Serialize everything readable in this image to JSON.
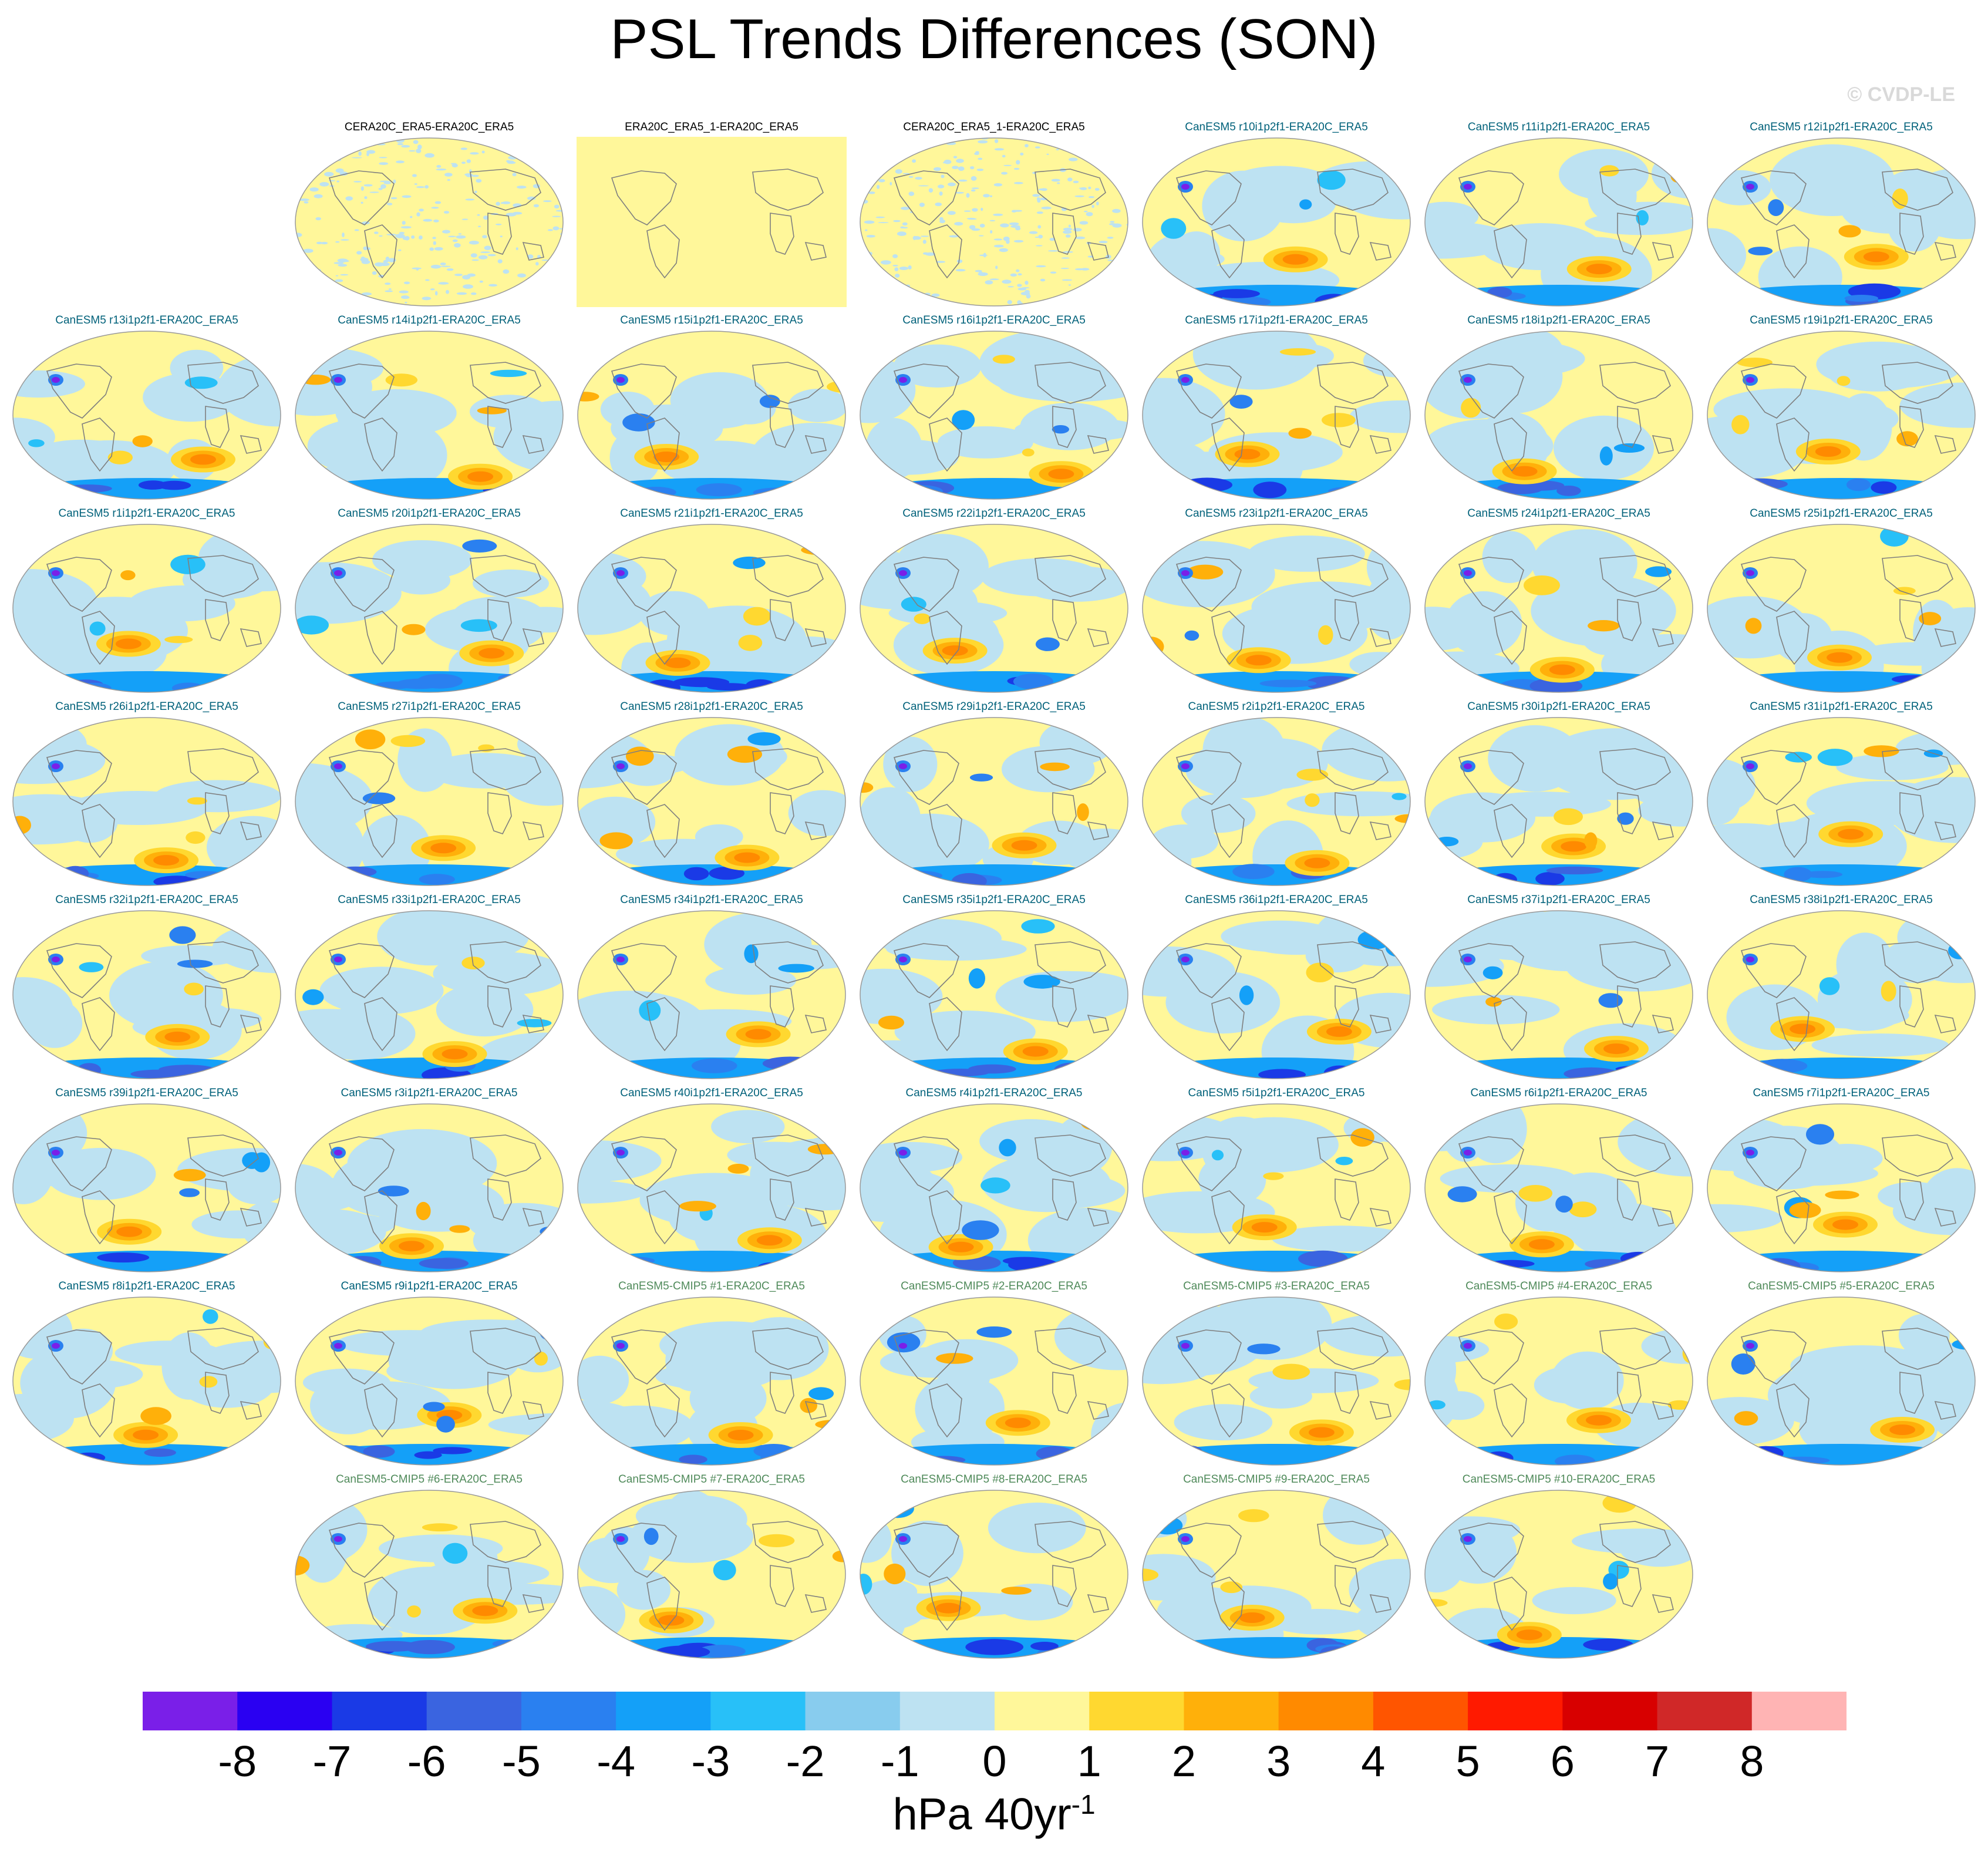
{
  "title": "PSL Trends Differences (SON)",
  "copyright": "© CVDP-LE",
  "colors": {
    "obs_title": "#000000",
    "model_title": "#00617a",
    "cmip_title": "#4f8a5a",
    "ocean_blank": "#fff79a",
    "coastline": "#7f7f7f"
  },
  "panels": [
    {
      "label": "CERA20C_ERA5-ERA20C_ERA5",
      "kind": "obs",
      "style": "speckle",
      "seed": 1
    },
    {
      "label": "ERA20C_ERA5_1-ERA20C_ERA5",
      "kind": "obs",
      "style": "blank",
      "seed": 2
    },
    {
      "label": "CERA20C_ERA5_1-ERA20C_ERA5",
      "kind": "obs",
      "style": "speckle",
      "seed": 3
    },
    {
      "label": "CanESM5 r10i1p2f1-ERA20C_ERA5",
      "kind": "model",
      "style": "field",
      "seed": 10
    },
    {
      "label": "CanESM5 r11i1p2f1-ERA20C_ERA5",
      "kind": "model",
      "style": "field",
      "seed": 11
    },
    {
      "label": "CanESM5 r12i1p2f1-ERA20C_ERA5",
      "kind": "model",
      "style": "field",
      "seed": 12
    },
    {
      "label": "CanESM5 r13i1p2f1-ERA20C_ERA5",
      "kind": "model",
      "style": "field",
      "seed": 13
    },
    {
      "label": "CanESM5 r14i1p2f1-ERA20C_ERA5",
      "kind": "model",
      "style": "field",
      "seed": 14
    },
    {
      "label": "CanESM5 r15i1p2f1-ERA20C_ERA5",
      "kind": "model",
      "style": "field",
      "seed": 15
    },
    {
      "label": "CanESM5 r16i1p2f1-ERA20C_ERA5",
      "kind": "model",
      "style": "field",
      "seed": 16
    },
    {
      "label": "CanESM5 r17i1p2f1-ERA20C_ERA5",
      "kind": "model",
      "style": "field",
      "seed": 17
    },
    {
      "label": "CanESM5 r18i1p2f1-ERA20C_ERA5",
      "kind": "model",
      "style": "field",
      "seed": 18
    },
    {
      "label": "CanESM5 r19i1p2f1-ERA20C_ERA5",
      "kind": "model",
      "style": "field",
      "seed": 19
    },
    {
      "label": "CanESM5 r1i1p2f1-ERA20C_ERA5",
      "kind": "model",
      "style": "field",
      "seed": 1
    },
    {
      "label": "CanESM5 r20i1p2f1-ERA20C_ERA5",
      "kind": "model",
      "style": "field",
      "seed": 20
    },
    {
      "label": "CanESM5 r21i1p2f1-ERA20C_ERA5",
      "kind": "model",
      "style": "field",
      "seed": 21
    },
    {
      "label": "CanESM5 r22i1p2f1-ERA20C_ERA5",
      "kind": "model",
      "style": "field",
      "seed": 22
    },
    {
      "label": "CanESM5 r23i1p2f1-ERA20C_ERA5",
      "kind": "model",
      "style": "field",
      "seed": 23
    },
    {
      "label": "CanESM5 r24i1p2f1-ERA20C_ERA5",
      "kind": "model",
      "style": "field",
      "seed": 24
    },
    {
      "label": "CanESM5 r25i1p2f1-ERA20C_ERA5",
      "kind": "model",
      "style": "field",
      "seed": 25
    },
    {
      "label": "CanESM5 r26i1p2f1-ERA20C_ERA5",
      "kind": "model",
      "style": "field",
      "seed": 26
    },
    {
      "label": "CanESM5 r27i1p2f1-ERA20C_ERA5",
      "kind": "model",
      "style": "field",
      "seed": 27
    },
    {
      "label": "CanESM5 r28i1p2f1-ERA20C_ERA5",
      "kind": "model",
      "style": "field",
      "seed": 28
    },
    {
      "label": "CanESM5 r29i1p2f1-ERA20C_ERA5",
      "kind": "model",
      "style": "field",
      "seed": 29
    },
    {
      "label": "CanESM5 r2i1p2f1-ERA20C_ERA5",
      "kind": "model",
      "style": "field",
      "seed": 2
    },
    {
      "label": "CanESM5 r30i1p2f1-ERA20C_ERA5",
      "kind": "model",
      "style": "field",
      "seed": 30
    },
    {
      "label": "CanESM5 r31i1p2f1-ERA20C_ERA5",
      "kind": "model",
      "style": "field",
      "seed": 31
    },
    {
      "label": "CanESM5 r32i1p2f1-ERA20C_ERA5",
      "kind": "model",
      "style": "field",
      "seed": 32
    },
    {
      "label": "CanESM5 r33i1p2f1-ERA20C_ERA5",
      "kind": "model",
      "style": "field",
      "seed": 33
    },
    {
      "label": "CanESM5 r34i1p2f1-ERA20C_ERA5",
      "kind": "model",
      "style": "field",
      "seed": 34
    },
    {
      "label": "CanESM5 r35i1p2f1-ERA20C_ERA5",
      "kind": "model",
      "style": "field",
      "seed": 35
    },
    {
      "label": "CanESM5 r36i1p2f1-ERA20C_ERA5",
      "kind": "model",
      "style": "field",
      "seed": 36
    },
    {
      "label": "CanESM5 r37i1p2f1-ERA20C_ERA5",
      "kind": "model",
      "style": "field",
      "seed": 37
    },
    {
      "label": "CanESM5 r38i1p2f1-ERA20C_ERA5",
      "kind": "model",
      "style": "field",
      "seed": 38
    },
    {
      "label": "CanESM5 r39i1p2f1-ERA20C_ERA5",
      "kind": "model",
      "style": "field",
      "seed": 39
    },
    {
      "label": "CanESM5 r3i1p2f1-ERA20C_ERA5",
      "kind": "model",
      "style": "field",
      "seed": 3
    },
    {
      "label": "CanESM5 r40i1p2f1-ERA20C_ERA5",
      "kind": "model",
      "style": "field",
      "seed": 40
    },
    {
      "label": "CanESM5 r4i1p2f1-ERA20C_ERA5",
      "kind": "model",
      "style": "field",
      "seed": 4
    },
    {
      "label": "CanESM5 r5i1p2f1-ERA20C_ERA5",
      "kind": "model",
      "style": "field",
      "seed": 5
    },
    {
      "label": "CanESM5 r6i1p2f1-ERA20C_ERA5",
      "kind": "model",
      "style": "field",
      "seed": 6
    },
    {
      "label": "CanESM5 r7i1p2f1-ERA20C_ERA5",
      "kind": "model",
      "style": "field",
      "seed": 7
    },
    {
      "label": "CanESM5 r8i1p2f1-ERA20C_ERA5",
      "kind": "model",
      "style": "field",
      "seed": 8
    },
    {
      "label": "CanESM5 r9i1p2f1-ERA20C_ERA5",
      "kind": "model",
      "style": "field",
      "seed": 9
    },
    {
      "label": "CanESM5-CMIP5 #1-ERA20C_ERA5",
      "kind": "cmip",
      "style": "field",
      "seed": 41
    },
    {
      "label": "CanESM5-CMIP5 #2-ERA20C_ERA5",
      "kind": "cmip",
      "style": "field",
      "seed": 42
    },
    {
      "label": "CanESM5-CMIP5 #3-ERA20C_ERA5",
      "kind": "cmip",
      "style": "field",
      "seed": 43
    },
    {
      "label": "CanESM5-CMIP5 #4-ERA20C_ERA5",
      "kind": "cmip",
      "style": "field",
      "seed": 44
    },
    {
      "label": "CanESM5-CMIP5 #5-ERA20C_ERA5",
      "kind": "cmip",
      "style": "field",
      "seed": 45
    },
    {
      "label": "CanESM5-CMIP5 #6-ERA20C_ERA5",
      "kind": "cmip",
      "style": "field",
      "seed": 46
    },
    {
      "label": "CanESM5-CMIP5 #7-ERA20C_ERA5",
      "kind": "cmip",
      "style": "field",
      "seed": 47
    },
    {
      "label": "CanESM5-CMIP5 #8-ERA20C_ERA5",
      "kind": "cmip",
      "style": "field",
      "seed": 48
    },
    {
      "label": "CanESM5-CMIP5 #9-ERA20C_ERA5",
      "kind": "cmip",
      "style": "field",
      "seed": 49
    },
    {
      "label": "CanESM5-CMIP5 #10-ERA20C_ERA5",
      "kind": "cmip",
      "style": "field",
      "seed": 50
    }
  ],
  "colorbar": {
    "labels": [
      "-8",
      "-7",
      "-6",
      "-5",
      "-4",
      "-3",
      "-2",
      "-1",
      "0",
      "1",
      "2",
      "3",
      "4",
      "5",
      "6",
      "7",
      "8"
    ],
    "colors": [
      "#7a1fe8",
      "#2a00f2",
      "#1a3ae6",
      "#3a64e0",
      "#2a80f0",
      "#14a0f8",
      "#28c0f8",
      "#88ccee",
      "#bde2f2",
      "#fff79a",
      "#ffd830",
      "#ffb00a",
      "#ff8a00",
      "#ff5500",
      "#ff1a00",
      "#d80000",
      "#d02828",
      "#ffb4b4"
    ],
    "units_main": "hPa 40yr",
    "units_exp": "-1"
  }
}
